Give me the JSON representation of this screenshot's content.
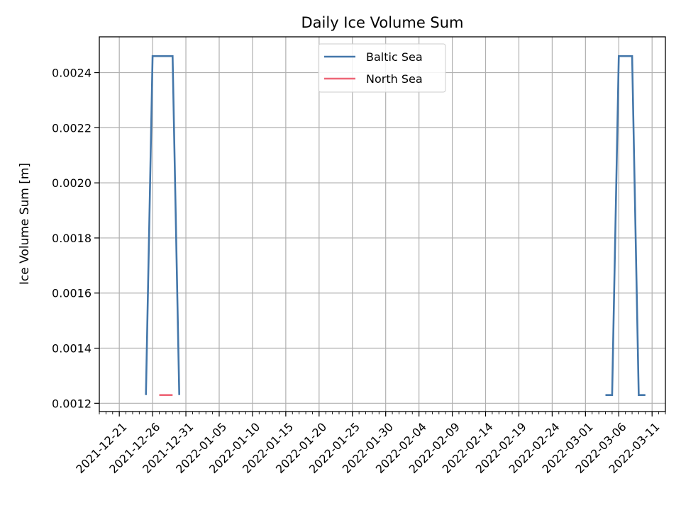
{
  "chart_data": {
    "type": "line",
    "title": "Daily Ice Volume Sum",
    "xlabel": "",
    "ylabel": "Ice Volume Sum [m]",
    "x_type": "date",
    "xlim": [
      "2021-12-18",
      "2022-03-13"
    ],
    "ylim": [
      0.00117,
      0.00253
    ],
    "x_ticks": [
      "2021-12-21",
      "2021-12-26",
      "2021-12-31",
      "2022-01-05",
      "2022-01-10",
      "2022-01-15",
      "2022-01-20",
      "2022-01-25",
      "2022-01-30",
      "2022-02-04",
      "2022-02-09",
      "2022-02-14",
      "2022-02-19",
      "2022-02-24",
      "2022-03-01",
      "2022-03-06",
      "2022-03-11"
    ],
    "y_ticks": [
      0.0012,
      0.0014,
      0.0016,
      0.0018,
      0.002,
      0.0022,
      0.0024
    ],
    "y_tick_labels": [
      "0.0012",
      "0.0014",
      "0.0016",
      "0.0018",
      "0.0020",
      "0.0022",
      "0.0024"
    ],
    "grid": true,
    "legend_position": "top-center",
    "series": [
      {
        "name": "Baltic Sea",
        "color": "#4477aa",
        "segments": [
          [
            {
              "x": "2021-12-25",
              "y": 0.00123
            },
            {
              "x": "2021-12-26",
              "y": 0.00246
            },
            {
              "x": "2021-12-29",
              "y": 0.00246
            },
            {
              "x": "2021-12-30",
              "y": 0.00123
            }
          ],
          [
            {
              "x": "2022-03-04",
              "y": 0.00123
            },
            {
              "x": "2022-03-05",
              "y": 0.00123
            },
            {
              "x": "2022-03-06",
              "y": 0.00246
            },
            {
              "x": "2022-03-08",
              "y": 0.00246
            },
            {
              "x": "2022-03-09",
              "y": 0.00123
            },
            {
              "x": "2022-03-10",
              "y": 0.00123
            }
          ]
        ]
      },
      {
        "name": "North Sea",
        "color": "#ee6677",
        "segments": [
          [
            {
              "x": "2021-12-27",
              "y": 0.00123
            },
            {
              "x": "2021-12-29",
              "y": 0.00123
            }
          ]
        ]
      }
    ]
  }
}
